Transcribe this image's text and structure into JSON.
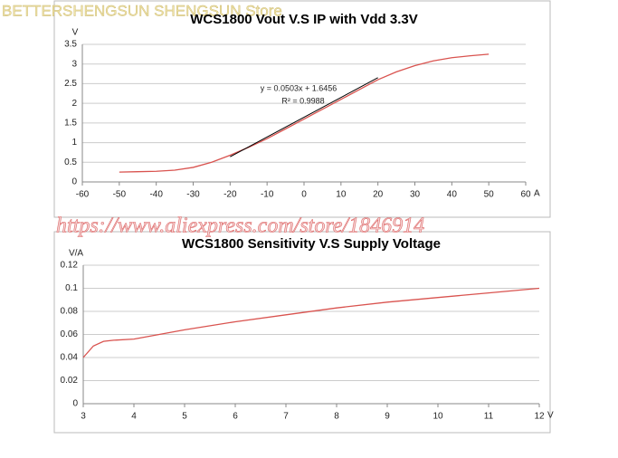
{
  "watermarks": [
    "BETTERSHENGSUN SHENGSUN Store",
    "https://www.aliexpress.com/store/1846914"
  ],
  "chart_data": [
    {
      "type": "line",
      "title": "WCS1800 Vout V.S IP with Vdd 3.3V",
      "xlabel": "A",
      "ylabel": "V",
      "x": [
        -50,
        -45,
        -40,
        -35,
        -30,
        -25,
        -20,
        -15,
        -10,
        -5,
        0,
        5,
        10,
        15,
        20,
        25,
        30,
        35,
        40,
        45,
        50
      ],
      "values": [
        0.25,
        0.26,
        0.27,
        0.3,
        0.37,
        0.5,
        0.68,
        0.88,
        1.1,
        1.35,
        1.6,
        1.85,
        2.1,
        2.35,
        2.6,
        2.8,
        2.96,
        3.08,
        3.16,
        3.21,
        3.25
      ],
      "color": "#d9534f",
      "trendline": {
        "x": [
          -20,
          20
        ],
        "values": [
          0.6396,
          2.6516
        ],
        "color": "#000000"
      },
      "annotations": [
        "y = 0.0503x + 1.6456",
        "R² = 0.9988"
      ],
      "xlim": [
        -60,
        60
      ],
      "xticks": [
        -60,
        -50,
        -40,
        -30,
        -20,
        -10,
        0,
        10,
        20,
        30,
        40,
        50,
        60
      ],
      "ylim": [
        0,
        3.5
      ],
      "yticks": [
        0,
        0.5,
        1,
        1.5,
        2,
        2.5,
        3,
        3.5
      ],
      "grid": true
    },
    {
      "type": "line",
      "title": "WCS1800 Sensitivity V.S Supply Voltage",
      "xlabel": "V",
      "ylabel": "V/A",
      "x": [
        3,
        3.2,
        3.4,
        3.6,
        4,
        4.5,
        5,
        6,
        7,
        8,
        9,
        10,
        11,
        12
      ],
      "values": [
        0.04,
        0.05,
        0.054,
        0.055,
        0.056,
        0.06,
        0.064,
        0.071,
        0.077,
        0.083,
        0.088,
        0.092,
        0.096,
        0.1
      ],
      "color": "#d9534f",
      "xlim": [
        3,
        12
      ],
      "xticks": [
        3,
        4,
        5,
        6,
        7,
        8,
        9,
        10,
        11,
        12
      ],
      "ylim": [
        0,
        0.12
      ],
      "yticks": [
        0,
        0.02,
        0.04,
        0.06,
        0.08,
        0.1,
        0.12
      ],
      "grid": true
    }
  ]
}
